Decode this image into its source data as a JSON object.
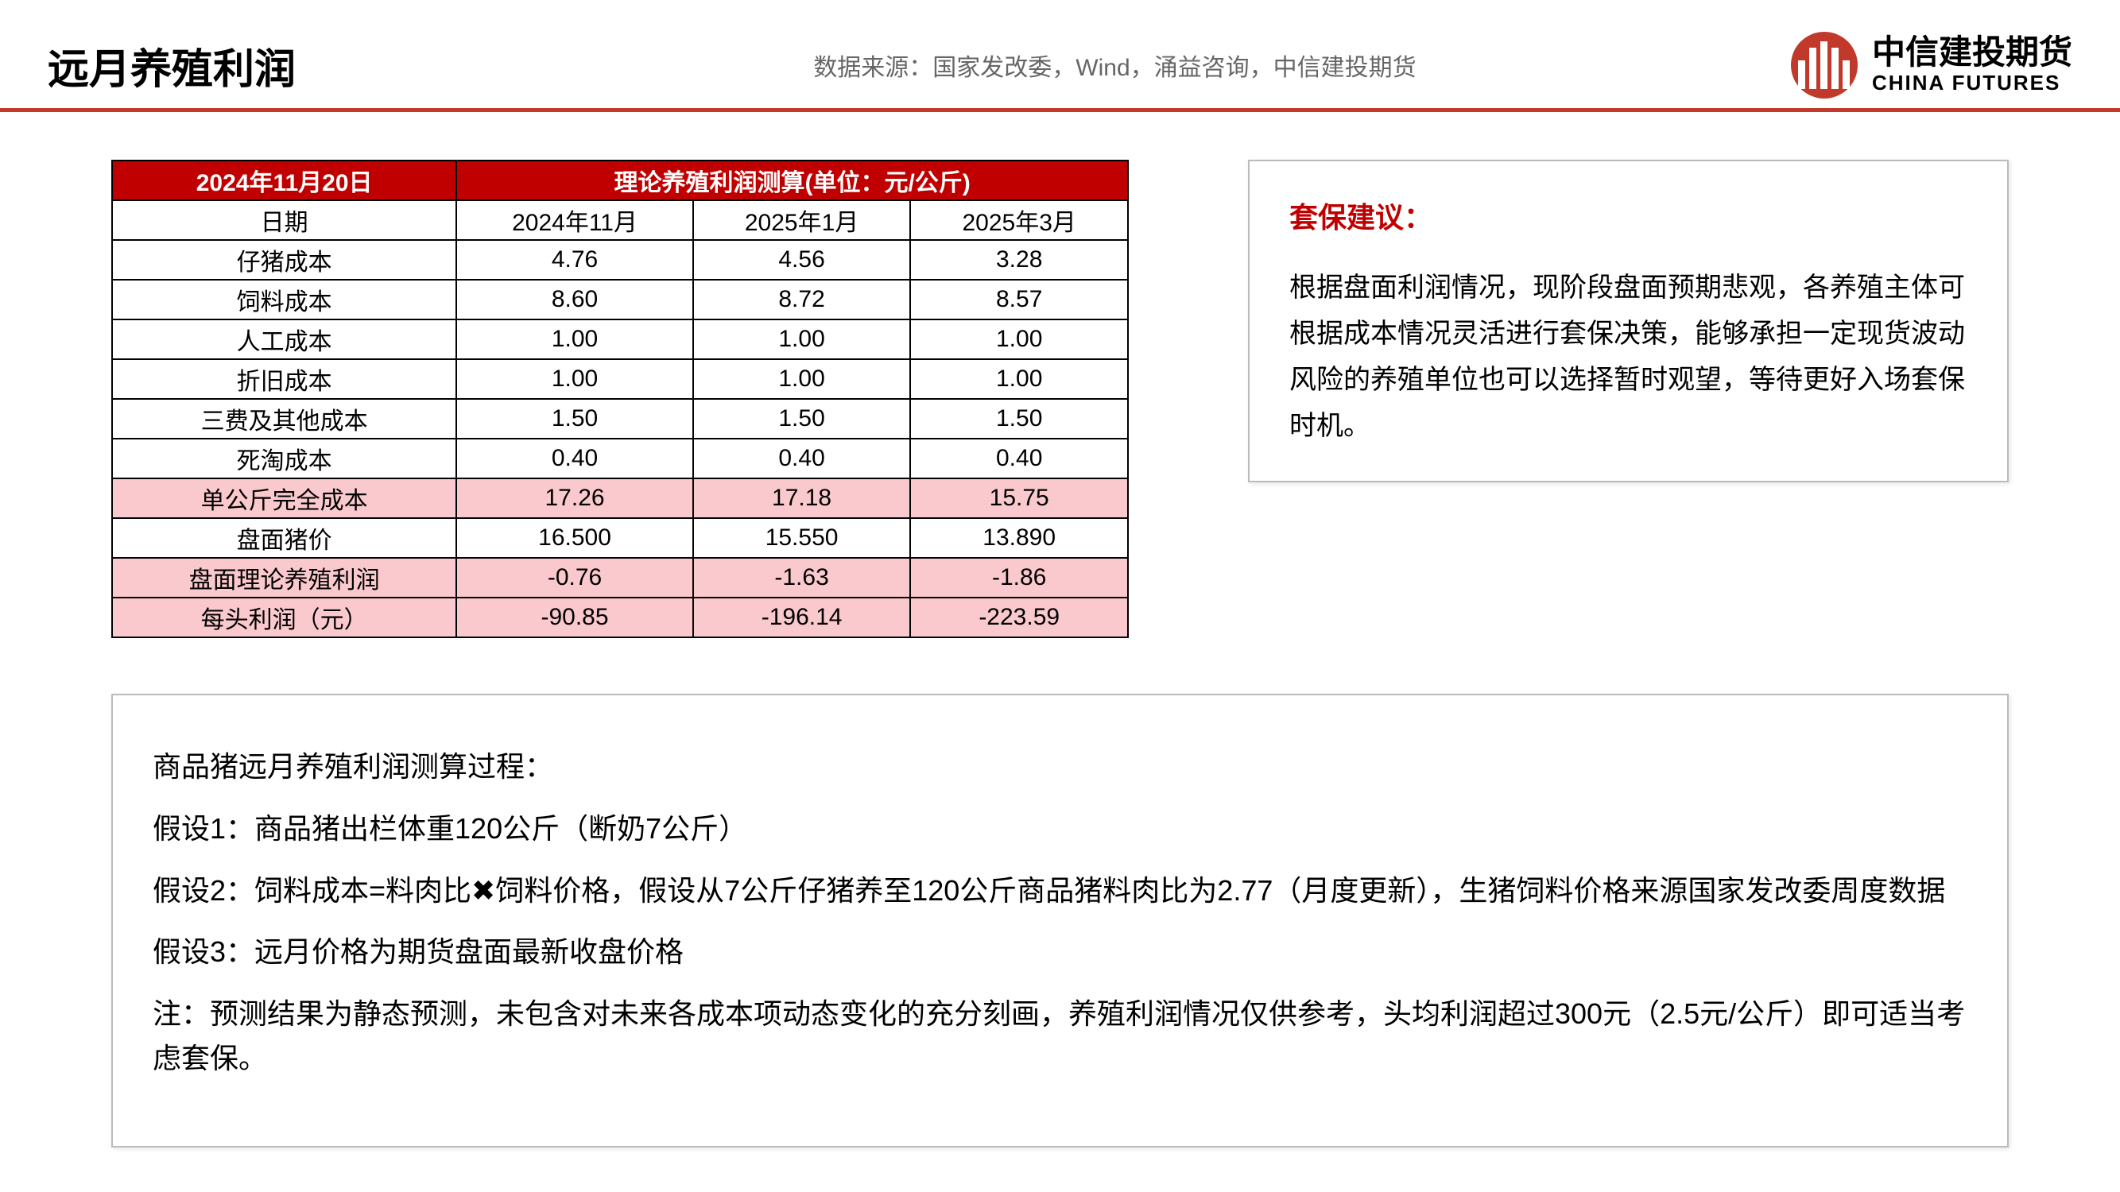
{
  "header": {
    "title": "远月养殖利润",
    "data_source": "数据来源：国家发改委，Wind，涌益咨询，中信建投期货",
    "brand_cn": "中信建投期货",
    "brand_en": "CHINA FUTURES"
  },
  "colors": {
    "accent": "#c00000",
    "header_rule": "#c0392b",
    "pink_row": "#f9c9cd",
    "border": "#000000",
    "box_border": "#bbbbbb",
    "text": "#000000",
    "muted": "#666666"
  },
  "table": {
    "type": "table",
    "top_left": "2024年11月20日",
    "top_span": "理论养殖利润测算(单位：元/公斤)",
    "col_header": "日期",
    "columns": [
      "2024年11月",
      "2025年1月",
      "2025年3月"
    ],
    "rows": [
      {
        "label": "仔猪成本",
        "v": [
          "4.76",
          "4.56",
          "3.28"
        ],
        "pink": false
      },
      {
        "label": "饲料成本",
        "v": [
          "8.60",
          "8.72",
          "8.57"
        ],
        "pink": false
      },
      {
        "label": "人工成本",
        "v": [
          "1.00",
          "1.00",
          "1.00"
        ],
        "pink": false
      },
      {
        "label": "折旧成本",
        "v": [
          "1.00",
          "1.00",
          "1.00"
        ],
        "pink": false
      },
      {
        "label": "三费及其他成本",
        "v": [
          "1.50",
          "1.50",
          "1.50"
        ],
        "pink": false
      },
      {
        "label": "死淘成本",
        "v": [
          "0.40",
          "0.40",
          "0.40"
        ],
        "pink": false
      },
      {
        "label": "单公斤完全成本",
        "v": [
          "17.26",
          "17.18",
          "15.75"
        ],
        "pink": true
      },
      {
        "label": "盘面猪价",
        "v": [
          "16.500",
          "15.550",
          "13.890"
        ],
        "pink": false
      },
      {
        "label": "盘面理论养殖利润",
        "v": [
          "-0.76",
          "-1.63",
          "-1.86"
        ],
        "pink": true
      },
      {
        "label": "每头利润（元）",
        "v": [
          "-90.85",
          "-196.14",
          "-223.59"
        ],
        "pink": true
      }
    ]
  },
  "advice": {
    "title": "套保建议：",
    "body": "根据盘面利润情况，现阶段盘面预期悲观，各养殖主体可根据成本情况灵活进行套保决策，能够承担一定现货波动风险的养殖单位也可以选择暂时观望，等待更好入场套保时机。"
  },
  "method": {
    "heading": "商品猪远月养殖利润测算过程：",
    "p1": "假设1：商品猪出栏体重120公斤（断奶7公斤）",
    "p2": "假设2：饲料成本=料肉比✖饲料价格，假设从7公斤仔猪养至120公斤商品猪料肉比为2.77（月度更新），生猪饲料价格来源国家发改委周度数据",
    "p3": "假设3：远月价格为期货盘面最新收盘价格",
    "note": "注：预测结果为静态预测，未包含对未来各成本项动态变化的充分刻画，养殖利润情况仅供参考，头均利润超过300元（2.5元/公斤）即可适当考虑套保。"
  }
}
